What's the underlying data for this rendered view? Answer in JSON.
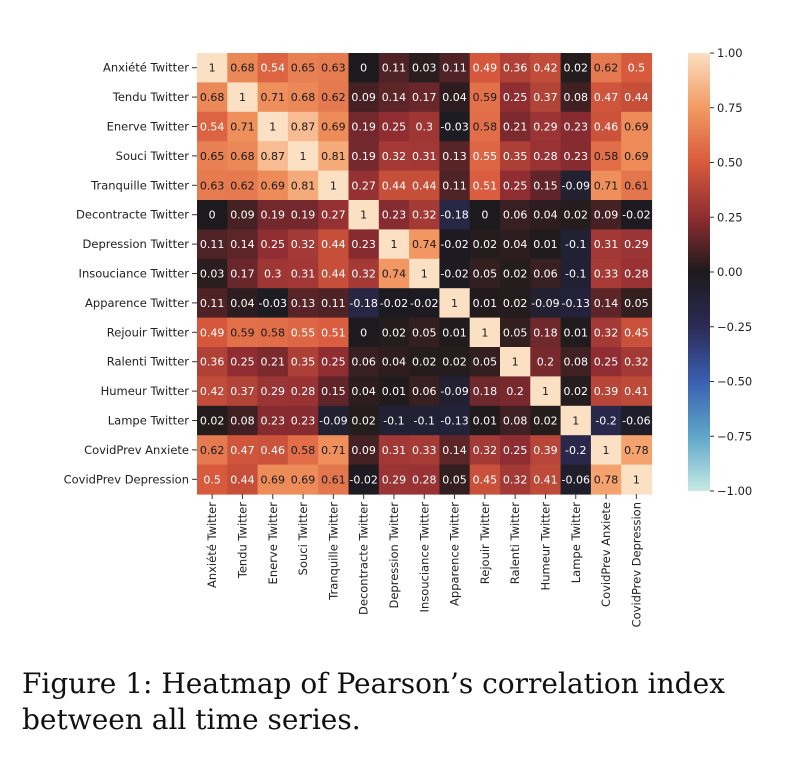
{
  "chart_data": {
    "type": "heatmap",
    "rows": [
      "Anxiété Twitter",
      "Tendu Twitter",
      "Enerve Twitter",
      "Souci Twitter",
      "Tranquille Twitter",
      "Decontracte Twitter",
      "Depression Twitter",
      "Insouciance Twitter",
      "Apparence Twitter",
      "Rejouir Twitter",
      "Ralenti Twitter",
      "Humeur Twitter",
      "Lampe Twitter",
      "CovidPrev Anxiete",
      "CovidPrev Depression"
    ],
    "columns": [
      "Anxiété Twitter",
      "Tendu Twitter",
      "Enerve Twitter",
      "Souci Twitter",
      "Tranquille Twitter",
      "Decontracte Twitter",
      "Depression Twitter",
      "Insouciance Twitter",
      "Apparence Twitter",
      "Rejouir Twitter",
      "Ralenti Twitter",
      "Humeur Twitter",
      "Lampe Twitter",
      "CovidPrev Anxiete",
      "CovidPrev Depression"
    ],
    "values": [
      [
        1,
        0.68,
        0.54,
        0.65,
        0.63,
        0,
        0.11,
        0.03,
        0.11,
        0.49,
        0.36,
        0.42,
        0.02,
        0.62,
        0.5
      ],
      [
        0.68,
        1,
        0.71,
        0.68,
        0.62,
        0.09,
        0.14,
        0.17,
        0.04,
        0.59,
        0.25,
        0.37,
        0.08,
        0.47,
        0.44
      ],
      [
        0.54,
        0.71,
        1,
        0.87,
        0.69,
        0.19,
        0.25,
        0.3,
        -0.03,
        0.58,
        0.21,
        0.29,
        0.23,
        0.46,
        0.69
      ],
      [
        0.65,
        0.68,
        0.87,
        1,
        0.81,
        0.19,
        0.32,
        0.31,
        0.13,
        0.55,
        0.35,
        0.28,
        0.23,
        0.58,
        0.69
      ],
      [
        0.63,
        0.62,
        0.69,
        0.81,
        1,
        0.27,
        0.44,
        0.44,
        0.11,
        0.51,
        0.25,
        0.15,
        -0.09,
        0.71,
        0.61
      ],
      [
        0,
        0.09,
        0.19,
        0.19,
        0.27,
        1,
        0.23,
        0.32,
        -0.18,
        0,
        0.06,
        0.04,
        0.02,
        0.09,
        -0.02
      ],
      [
        0.11,
        0.14,
        0.25,
        0.32,
        0.44,
        0.23,
        1,
        0.74,
        -0.02,
        0.02,
        0.04,
        0.01,
        -0.1,
        0.31,
        0.29
      ],
      [
        0.03,
        0.17,
        0.3,
        0.31,
        0.44,
        0.32,
        0.74,
        1,
        -0.02,
        0.05,
        0.02,
        0.06,
        -0.1,
        0.33,
        0.28
      ],
      [
        0.11,
        0.04,
        -0.03,
        0.13,
        0.11,
        -0.18,
        -0.02,
        -0.02,
        1,
        0.01,
        0.02,
        -0.09,
        -0.13,
        0.14,
        0.05
      ],
      [
        0.49,
        0.59,
        0.58,
        0.55,
        0.51,
        0,
        0.02,
        0.05,
        0.01,
        1,
        0.05,
        0.18,
        0.01,
        0.32,
        0.45
      ],
      [
        0.36,
        0.25,
        0.21,
        0.35,
        0.25,
        0.06,
        0.04,
        0.02,
        0.02,
        0.05,
        1,
        0.2,
        0.08,
        0.25,
        0.32
      ],
      [
        0.42,
        0.37,
        0.29,
        0.28,
        0.15,
        0.04,
        0.01,
        0.06,
        -0.09,
        0.18,
        0.2,
        1,
        0.02,
        0.39,
        0.41
      ],
      [
        0.02,
        0.08,
        0.23,
        0.23,
        -0.09,
        0.02,
        -0.1,
        -0.1,
        -0.13,
        0.01,
        0.08,
        0.02,
        1,
        -0.2,
        -0.06
      ],
      [
        0.62,
        0.47,
        0.46,
        0.58,
        0.71,
        0.09,
        0.31,
        0.33,
        0.14,
        0.32,
        0.25,
        0.39,
        -0.2,
        1,
        0.78
      ],
      [
        0.5,
        0.44,
        0.69,
        0.69,
        0.61,
        -0.02,
        0.29,
        0.28,
        0.05,
        0.45,
        0.32,
        0.41,
        -0.06,
        0.78,
        1
      ]
    ],
    "vmin": -1,
    "vmax": 1,
    "colorbar_ticks": [
      1,
      0.75,
      0.5,
      0.25,
      0,
      -0.25,
      -0.5,
      -0.75,
      -1
    ],
    "colorbar_tick_labels": [
      "1.00",
      "0.75",
      "0.50",
      "0.25",
      "0.00",
      "−0.25",
      "−0.50",
      "−0.75",
      "−1.00"
    ],
    "colormap": "icefire",
    "annotated": true
  },
  "caption": "Figure 1: Heatmap of Pearson’s correlation index between all time series."
}
